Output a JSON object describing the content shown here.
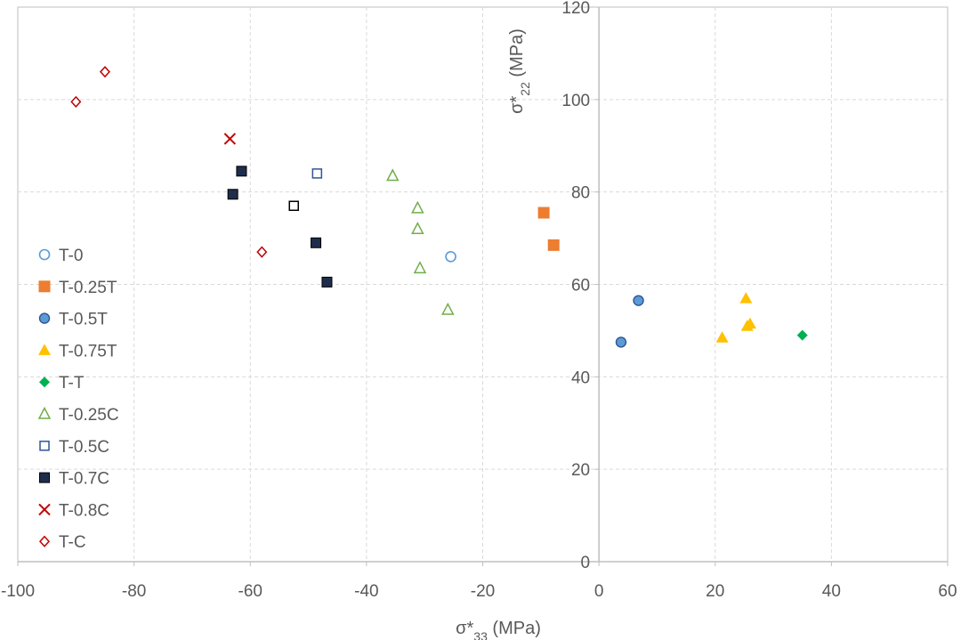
{
  "chart_data": {
    "type": "scatter",
    "title": "",
    "xlabel": "σ*33 (MPa)",
    "xlabel_main": "σ*",
    "xlabel_sub": "33",
    "xlabel_unit": " (MPa)",
    "ylabel": "σ*22 (MPa)",
    "ylabel_main": "σ*",
    "ylabel_sub": "22",
    "ylabel_unit": " (MPa)",
    "xlim": [
      -100,
      60
    ],
    "ylim": [
      0,
      120
    ],
    "xticks": [
      -100,
      -80,
      -60,
      -40,
      -20,
      0,
      20,
      40,
      60
    ],
    "yticks": [
      0,
      20,
      40,
      60,
      80,
      100,
      120
    ],
    "grid": true,
    "legend_position": "left",
    "series": [
      {
        "name": "T-0",
        "marker": "circle-open",
        "color": "#5b9bd5",
        "points": [
          [
            -25.5,
            66
          ]
        ]
      },
      {
        "name": "T-0.25T",
        "marker": "square-filled",
        "color": "#ed7d31",
        "points": [
          [
            -9.5,
            75.5
          ],
          [
            -7.8,
            68.5
          ]
        ]
      },
      {
        "name": "T-0.5T",
        "marker": "circle-filled",
        "color": "#5b9bd5",
        "points": [
          [
            3.8,
            47.5
          ],
          [
            6.8,
            56.5
          ]
        ]
      },
      {
        "name": "T-0.75T",
        "marker": "triangle-filled",
        "color": "#ffc000",
        "points": [
          [
            21.2,
            48.5
          ],
          [
            25.3,
            57
          ],
          [
            25.5,
            51
          ],
          [
            26.0,
            51.5
          ]
        ]
      },
      {
        "name": "T-T",
        "marker": "diamond-filled",
        "color": "#00b050",
        "points": [
          [
            35.0,
            49
          ]
        ]
      },
      {
        "name": "T-0.25C",
        "marker": "triangle-open",
        "color": "#70ad47",
        "points": [
          [
            -35.5,
            83.5
          ],
          [
            -31.2,
            76.5
          ],
          [
            -31.2,
            72
          ],
          [
            -30.8,
            63.5
          ],
          [
            -26.0,
            54.5
          ]
        ]
      },
      {
        "name": "T-0.5C",
        "marker": "square-open",
        "color": "#2e5597",
        "points": [
          [
            -48.5,
            84
          ]
        ]
      },
      {
        "name": "T-0.7C",
        "marker": "square-filled-outlined",
        "color": "#1f2d4d",
        "points": [
          [
            -61.5,
            84.5
          ],
          [
            -63.0,
            79.5
          ],
          [
            -48.7,
            69
          ],
          [
            -46.8,
            60.5
          ]
        ]
      },
      {
        "name": "T-0.7C-open",
        "legend": false,
        "marker": "square-open",
        "color": "#000000",
        "points": [
          [
            -52.5,
            77
          ]
        ]
      },
      {
        "name": "T-0.8C",
        "marker": "x",
        "color": "#c00000",
        "points": [
          [
            -63.5,
            91.5
          ]
        ]
      },
      {
        "name": "T-C",
        "marker": "diamond-open",
        "color": "#c00000",
        "points": [
          [
            -90.0,
            99.5
          ],
          [
            -85.0,
            106
          ],
          [
            -58.0,
            67
          ]
        ]
      }
    ]
  }
}
